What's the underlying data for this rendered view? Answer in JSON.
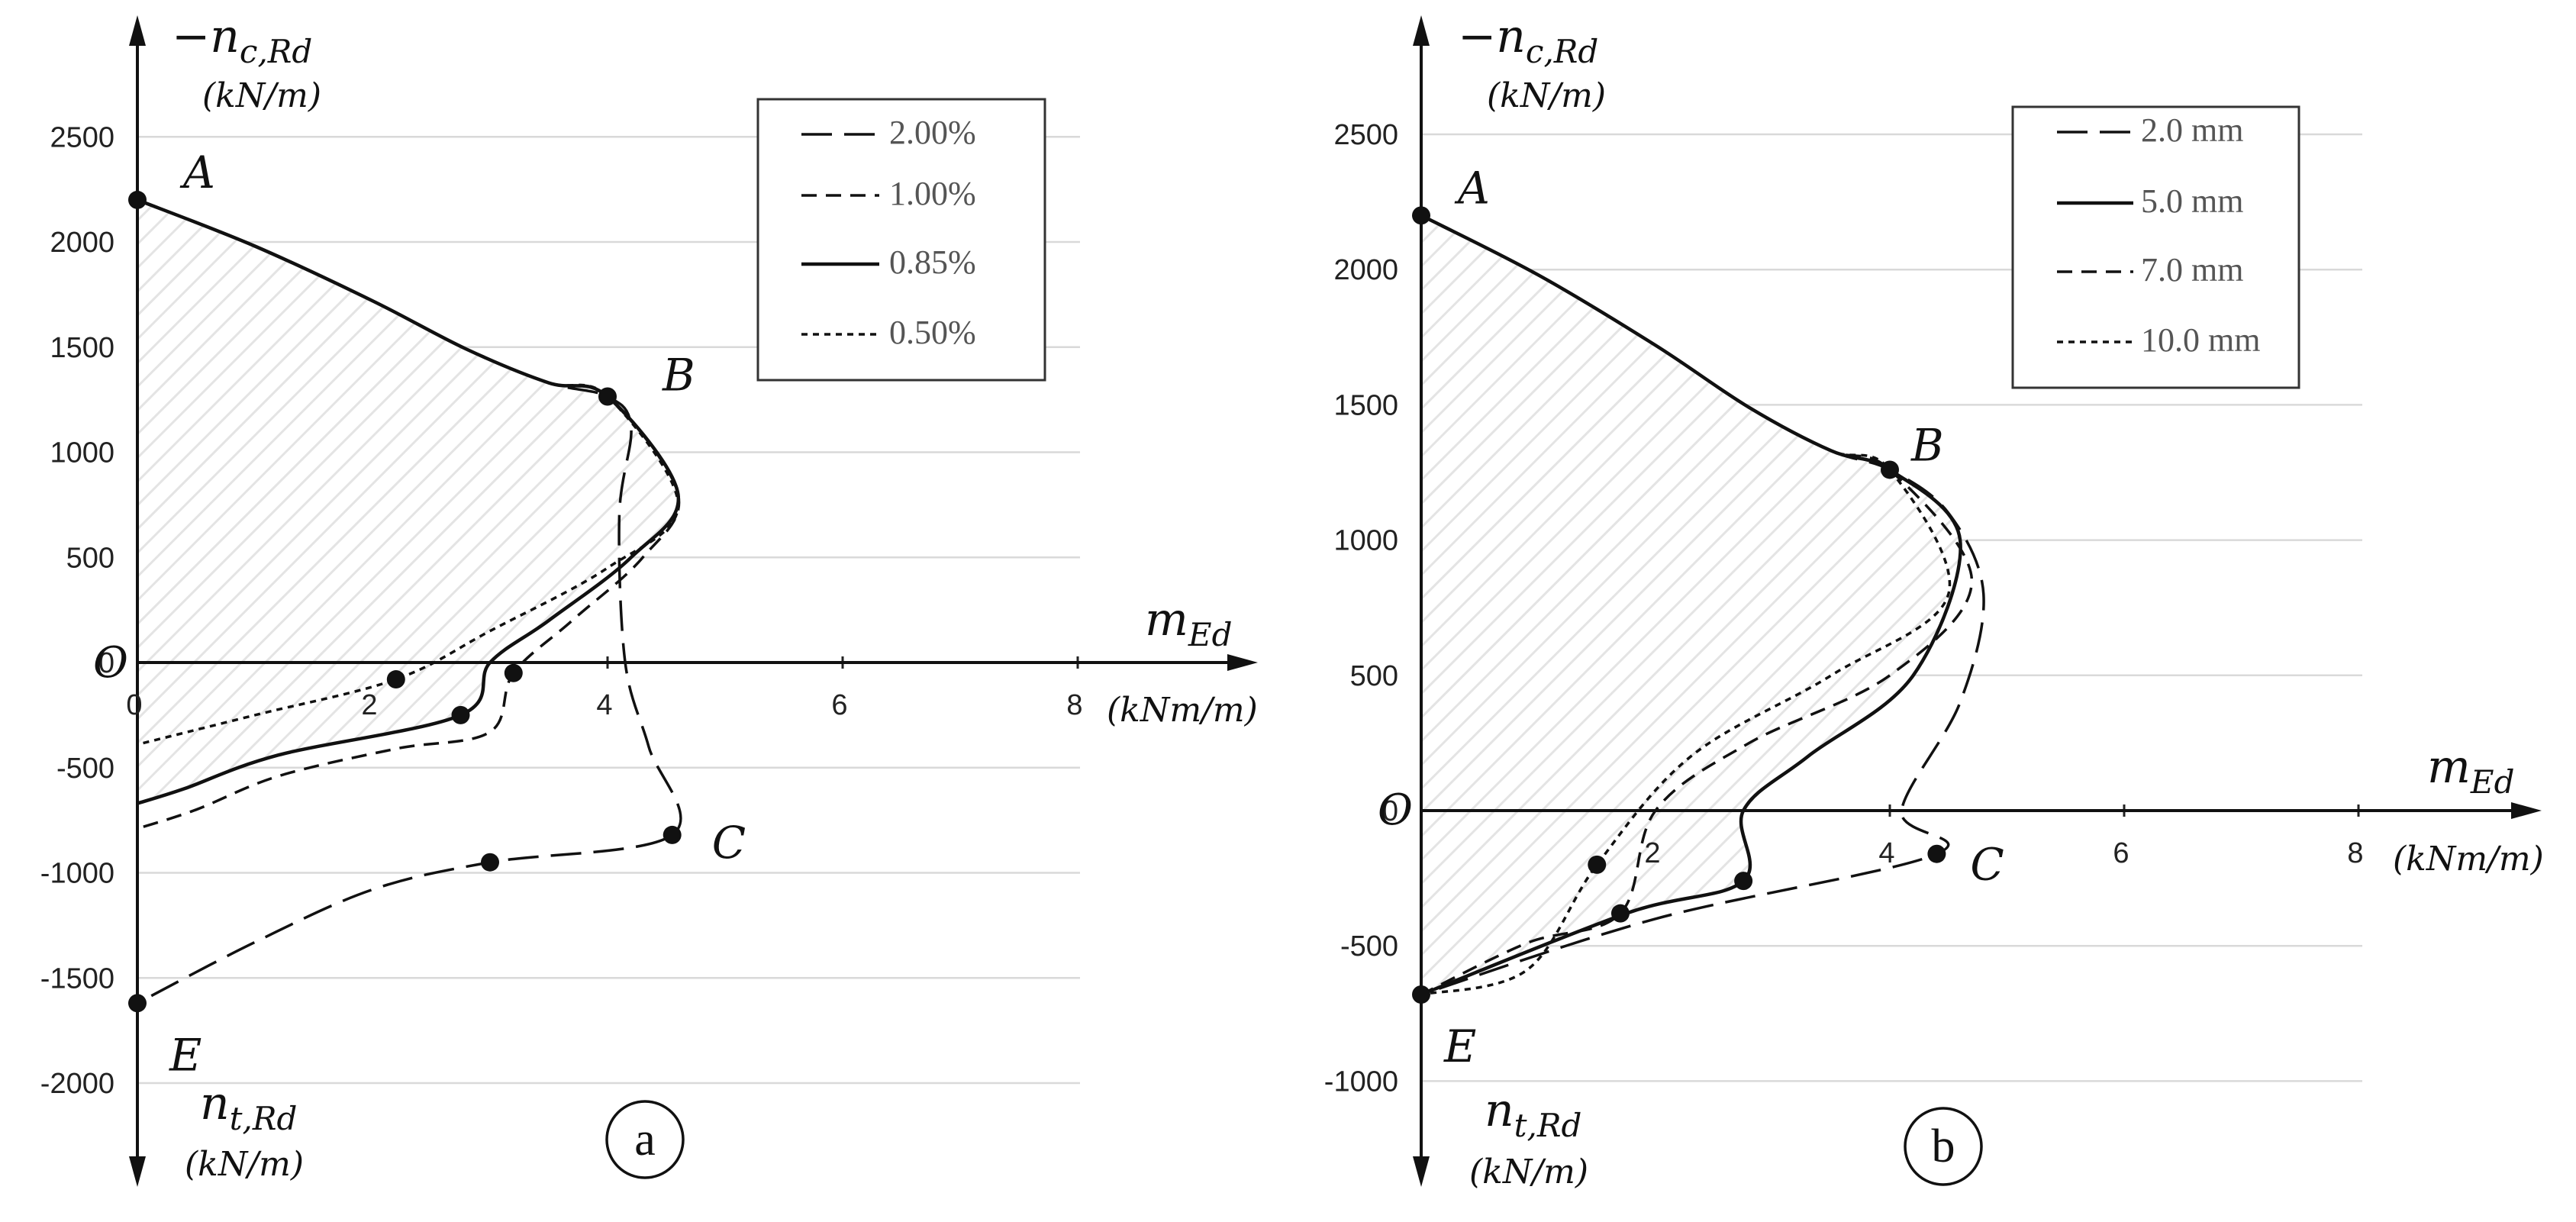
{
  "chart_data": [
    {
      "type": "line",
      "panel_label": "a",
      "y_axis_label": "−n",
      "y_axis_sub": "c,Rd",
      "y_axis_unit": "(kN/m)",
      "y_axis_neg_label": "n",
      "y_axis_neg_sub": "t,Rd",
      "y_axis_neg_unit": "(kN/m)",
      "x_axis_label": "m",
      "x_axis_sub": "Ed",
      "x_axis_unit": "(kNm/m)",
      "origin_label": "O",
      "xticks": [
        "0",
        "2",
        "4",
        "6",
        "8"
      ],
      "yticks": [
        "2500",
        "2000",
        "1500",
        "1000",
        "500",
        "0",
        "-500",
        "-1000",
        "-1500",
        "-2000"
      ],
      "xlim": [
        0,
        9.4
      ],
      "ylim": [
        -2450,
        2900
      ],
      "grid": true,
      "legend_position": "top-right",
      "points": [
        {
          "name": "A",
          "x": 0,
          "y": 2200
        },
        {
          "name": "B",
          "x": 4.0,
          "y": 1265
        },
        {
          "name": "C",
          "x": 4.55,
          "y": -820
        },
        {
          "name": "E",
          "x": 0,
          "y": -1620
        }
      ],
      "series": [
        {
          "name": "2.00%",
          "style": "long-dash",
          "x": [
            0,
            1.0,
            2.0,
            2.8,
            3.5,
            4.0,
            4.2,
            4.1,
            4.15,
            4.35,
            4.55,
            3.0,
            2.0,
            1.0,
            0
          ],
          "y": [
            2200,
            1980,
            1720,
            1490,
            1330,
            1265,
            1120,
            700,
            0,
            -400,
            -820,
            -950,
            -1080,
            -1330,
            -1620
          ]
        },
        {
          "name": "1.00%",
          "style": "dash",
          "x": [
            0,
            1.0,
            2.0,
            2.8,
            3.5,
            4.0,
            4.6,
            4.3,
            3.7,
            3.2,
            3.0,
            2.2,
            1.2,
            0.5,
            0
          ],
          "y": [
            2200,
            1980,
            1720,
            1490,
            1330,
            1265,
            800,
            500,
            200,
            -50,
            -330,
            -410,
            -540,
            -700,
            -790
          ]
        },
        {
          "name": "0.85%",
          "style": "solid",
          "x": [
            0,
            1.0,
            2.0,
            2.8,
            3.5,
            4.0,
            4.6,
            4.2,
            3.5,
            3.0,
            2.75,
            1.2,
            0.4,
            0
          ],
          "y": [
            2200,
            1980,
            1720,
            1490,
            1330,
            1265,
            800,
            500,
            200,
            0,
            -250,
            -440,
            -600,
            -670
          ]
        },
        {
          "name": "0.50%",
          "style": "dot",
          "x": [
            0,
            1.0,
            2.0,
            2.8,
            3.5,
            4.0,
            4.6,
            4.0,
            3.0,
            2.2,
            1.0,
            0
          ],
          "y": [
            2200,
            1980,
            1720,
            1490,
            1330,
            1265,
            750,
            450,
            150,
            -80,
            -250,
            -390
          ]
        }
      ]
    },
    {
      "type": "line",
      "panel_label": "b",
      "y_axis_label": "−n",
      "y_axis_sub": "c,Rd",
      "y_axis_unit": "(kN/m)",
      "y_axis_neg_label": "n",
      "y_axis_neg_sub": "t,Rd",
      "y_axis_neg_unit": "(kN/m)",
      "x_axis_label": "m",
      "x_axis_sub": "Ed",
      "x_axis_unit": "(kNm/m)",
      "origin_label": "O",
      "xticks": [
        "2",
        "4",
        "6",
        "8"
      ],
      "yticks": [
        "2500",
        "2000",
        "1500",
        "1000",
        "500",
        "0",
        "-500",
        "-1000"
      ],
      "xlim": [
        0,
        9.4
      ],
      "ylim": [
        -1350,
        2900
      ],
      "grid": true,
      "legend_position": "top-right",
      "points": [
        {
          "name": "A",
          "x": 0,
          "y": 2200
        },
        {
          "name": "B",
          "x": 4.0,
          "y": 1260
        },
        {
          "name": "C",
          "x": 4.4,
          "y": -160
        },
        {
          "name": "E",
          "x": 0,
          "y": -680
        }
      ],
      "series": [
        {
          "name": "2.0 mm",
          "style": "long-dash",
          "x": [
            0,
            1.0,
            2.0,
            2.8,
            3.5,
            4.0,
            4.5,
            4.8,
            4.6,
            4.1,
            4.4,
            2.0,
            0
          ],
          "y": [
            2200,
            1980,
            1720,
            1490,
            1330,
            1260,
            1100,
            800,
            400,
            0,
            -160,
            -400,
            -680
          ]
        },
        {
          "name": "5.0 mm",
          "style": "solid",
          "x": [
            0,
            1.0,
            2.0,
            2.8,
            3.5,
            4.0,
            4.6,
            4.2,
            3.3,
            2.75,
            2.75,
            1.75,
            0
          ],
          "y": [
            2200,
            1980,
            1720,
            1490,
            1330,
            1260,
            1000,
            500,
            200,
            0,
            -260,
            -380,
            -680
          ]
        },
        {
          "name": "7.0 mm",
          "style": "dash",
          "x": [
            0,
            1.0,
            2.0,
            2.8,
            3.5,
            4.0,
            4.7,
            4.0,
            2.8,
            2.0,
            1.7,
            0.9,
            0
          ],
          "y": [
            2200,
            1980,
            1720,
            1490,
            1330,
            1260,
            850,
            500,
            250,
            0,
            -380,
            -490,
            -680
          ]
        },
        {
          "name": "10.0 mm",
          "style": "dot",
          "x": [
            0,
            1.0,
            2.0,
            2.8,
            3.5,
            4.0,
            4.5,
            3.5,
            2.3,
            1.5,
            0.9,
            0
          ],
          "y": [
            2200,
            1980,
            1720,
            1490,
            1330,
            1260,
            800,
            500,
            200,
            -200,
            -590,
            -680
          ]
        }
      ]
    }
  ]
}
